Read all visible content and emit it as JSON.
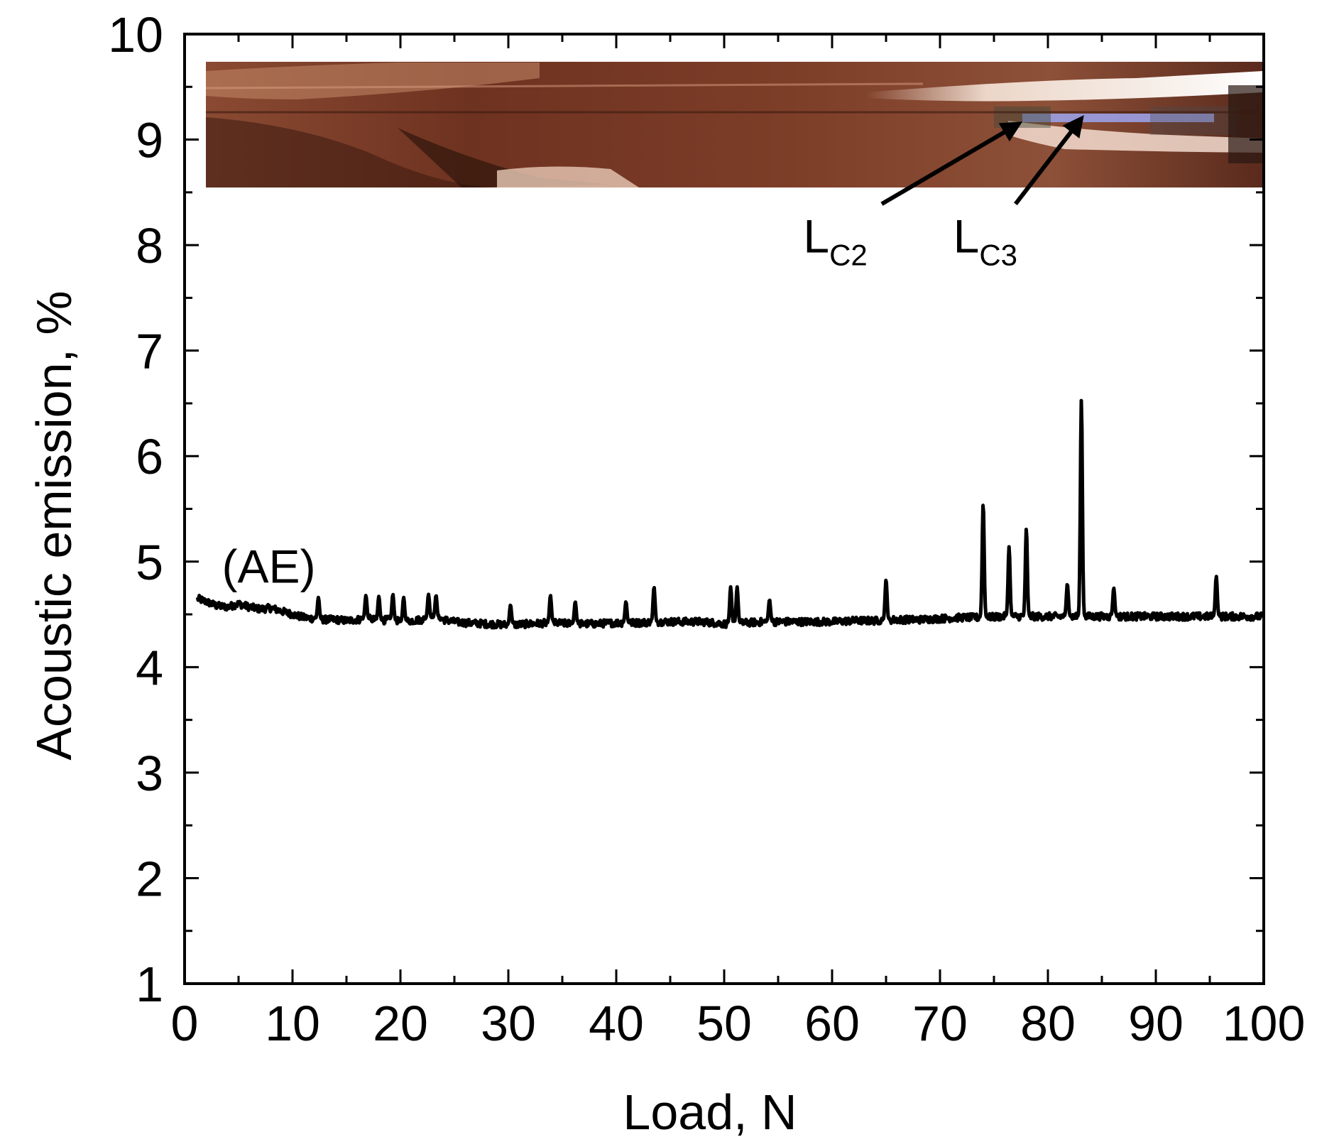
{
  "chart_data": {
    "type": "line",
    "xlabel": "Load, N",
    "ylabel": "Acoustic emission, %",
    "xlim": [
      0,
      100
    ],
    "ylim": [
      1,
      10
    ],
    "xticks": [
      "0",
      "10",
      "20",
      "30",
      "40",
      "50",
      "60",
      "70",
      "80",
      "90",
      "100"
    ],
    "yticks": [
      "1",
      "2",
      "3",
      "4",
      "5",
      "6",
      "7",
      "8",
      "9",
      "10"
    ],
    "grid": false,
    "legend": "none",
    "line_color": "#000000",
    "series": [
      {
        "x": [
          1.2,
          2,
          3,
          4,
          5,
          6,
          7,
          8,
          9,
          10,
          11,
          12,
          13,
          14,
          15,
          16,
          17,
          18,
          19,
          20,
          21,
          22,
          23,
          24,
          25,
          26,
          28,
          30,
          32,
          34,
          36,
          38,
          40,
          42,
          44,
          46,
          48,
          50,
          52,
          54,
          56,
          58,
          60,
          62,
          64,
          66,
          68,
          70,
          72,
          74,
          76,
          78,
          80,
          82,
          84,
          86,
          88,
          90,
          92,
          94,
          96,
          98,
          100
        ],
        "y": [
          4.65,
          4.62,
          4.58,
          4.57,
          4.6,
          4.57,
          4.55,
          4.56,
          4.53,
          4.5,
          4.47,
          4.46,
          4.45,
          4.45,
          4.44,
          4.45,
          4.46,
          4.44,
          4.45,
          4.43,
          4.44,
          4.45,
          4.47,
          4.45,
          4.43,
          4.42,
          4.41,
          4.4,
          4.41,
          4.42,
          4.41,
          4.41,
          4.42,
          4.42,
          4.43,
          4.43,
          4.43,
          4.41,
          4.42,
          4.43,
          4.43,
          4.43,
          4.43,
          4.44,
          4.44,
          4.45,
          4.45,
          4.46,
          4.47,
          4.47,
          4.48,
          4.48,
          4.48,
          4.48,
          4.48,
          4.48,
          4.48,
          4.48,
          4.48,
          4.48,
          4.48,
          4.48,
          4.48
        ]
      }
    ],
    "spikes": [
      {
        "x": 12.4,
        "y": 4.66
      },
      {
        "x": 16.8,
        "y": 4.68
      },
      {
        "x": 18.0,
        "y": 4.67
      },
      {
        "x": 19.3,
        "y": 4.69
      },
      {
        "x": 20.3,
        "y": 4.66
      },
      {
        "x": 22.6,
        "y": 4.69
      },
      {
        "x": 23.3,
        "y": 4.68
      },
      {
        "x": 30.2,
        "y": 4.59
      },
      {
        "x": 33.9,
        "y": 4.68
      },
      {
        "x": 36.2,
        "y": 4.62
      },
      {
        "x": 40.9,
        "y": 4.62
      },
      {
        "x": 43.5,
        "y": 4.76
      },
      {
        "x": 50.6,
        "y": 4.76
      },
      {
        "x": 51.2,
        "y": 4.76
      },
      {
        "x": 54.2,
        "y": 4.64
      },
      {
        "x": 65.0,
        "y": 4.83
      },
      {
        "x": 74.0,
        "y": 5.55
      },
      {
        "x": 76.4,
        "y": 5.14
      },
      {
        "x": 78.0,
        "y": 5.31
      },
      {
        "x": 81.8,
        "y": 4.79
      },
      {
        "x": 83.1,
        "y": 6.53
      },
      {
        "x": 86.1,
        "y": 4.75
      },
      {
        "x": 95.6,
        "y": 4.86
      }
    ],
    "annotations": [
      {
        "text": "(AE)",
        "x": 7.8,
        "y": 4.8
      },
      {
        "text": "L",
        "sub": "C2",
        "x": 60.3,
        "y": 7.93
      },
      {
        "text": "L",
        "sub": "C3",
        "x": 74.2,
        "y": 7.93
      }
    ],
    "arrows": [
      {
        "from": [
          64.6,
          8.39
        ],
        "to": [
          77.3,
          9.15
        ]
      },
      {
        "from": [
          77.0,
          8.39
        ],
        "to": [
          83.1,
          9.2
        ]
      }
    ],
    "inset_image": {
      "description_colors": [
        "#7a3a25",
        "#3a1a10",
        "#c48060",
        "#f2dccd",
        "#9aa0e6"
      ]
    }
  }
}
